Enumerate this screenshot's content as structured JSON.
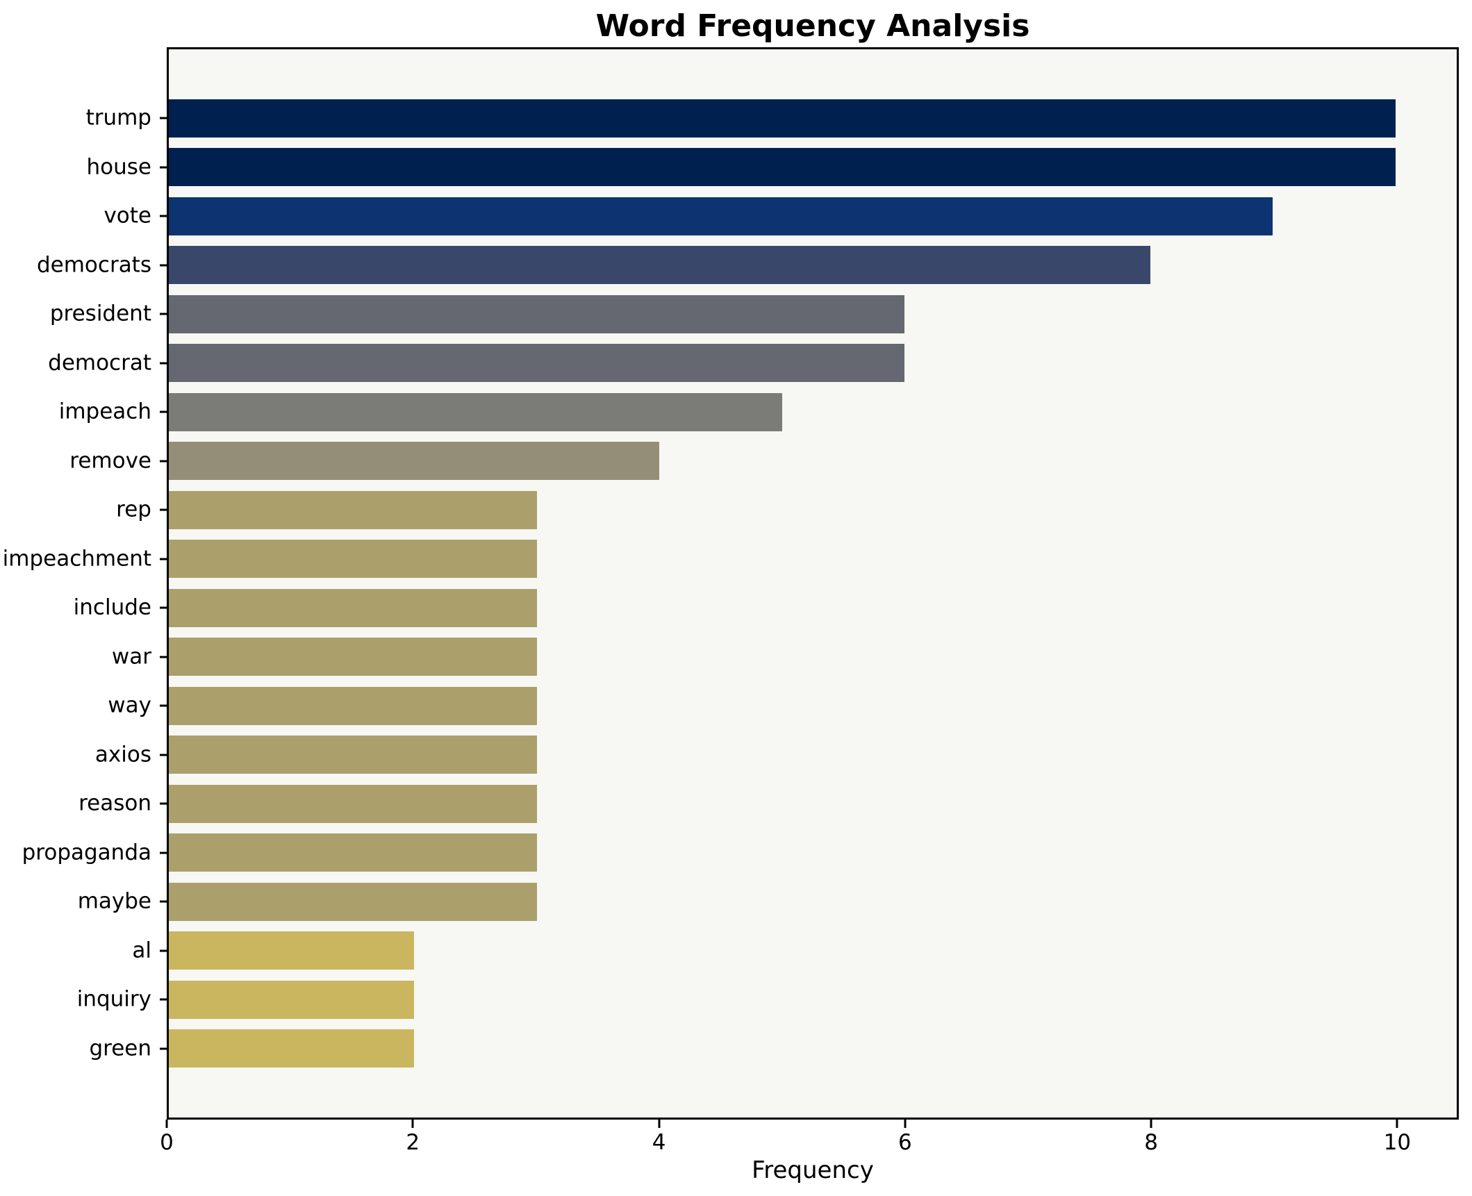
{
  "colors": {
    "figure_bg": "#ffffff",
    "plot_bg": "#f7f7f4",
    "axis": "#000000",
    "text": "#000000"
  },
  "chart_data": {
    "type": "bar",
    "orientation": "horizontal",
    "title": "Word Frequency Analysis",
    "xlabel": "Frequency",
    "ylabel": "",
    "grid": false,
    "legend": false,
    "categories": [
      "trump",
      "house",
      "vote",
      "democrats",
      "president",
      "democrat",
      "impeach",
      "remove",
      "rep",
      "impeachment",
      "include",
      "war",
      "way",
      "axios",
      "reason",
      "propaganda",
      "maybe",
      "al",
      "inquiry",
      "green"
    ],
    "values": [
      10,
      10,
      9,
      8,
      6,
      6,
      5,
      4,
      3,
      3,
      3,
      3,
      3,
      3,
      3,
      3,
      3,
      2,
      2,
      2
    ],
    "bar_colors": [
      "#002150",
      "#002150",
      "#0d3470",
      "#39476b",
      "#656871",
      "#656871",
      "#7b7b78",
      "#948e78",
      "#aba06b",
      "#aba06b",
      "#aba06b",
      "#aba06b",
      "#aba06b",
      "#aba06b",
      "#aba06b",
      "#aba06b",
      "#aba06b",
      "#c9b65e",
      "#c9b65e",
      "#c9b65e"
    ],
    "xlim": [
      0,
      10.5
    ],
    "xticks": [
      0,
      2,
      4,
      6,
      8,
      10
    ]
  }
}
